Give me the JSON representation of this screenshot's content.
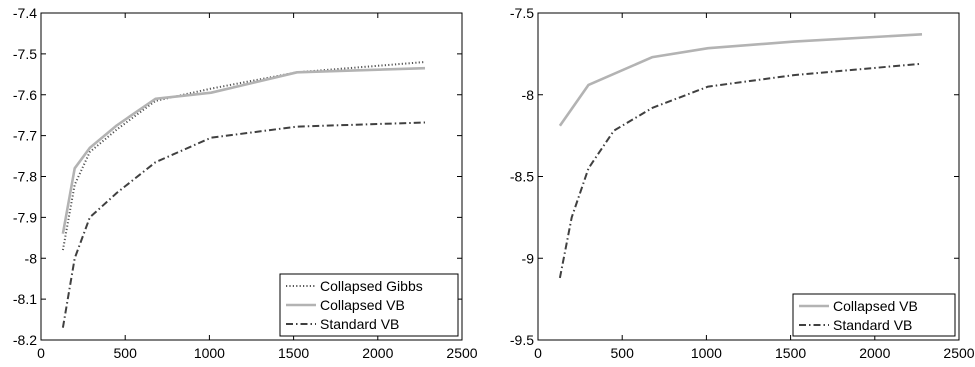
{
  "chart_data": [
    {
      "type": "line",
      "title": "",
      "xlabel": "",
      "ylabel": "",
      "xlim": [
        0,
        2500
      ],
      "ylim": [
        -8.2,
        -7.4
      ],
      "xticks": [
        0,
        500,
        1000,
        1500,
        2000,
        2500
      ],
      "xtick_labels": [
        "0",
        "500",
        "1000",
        "1500",
        "2000",
        "2500"
      ],
      "yticks": [
        -7.4,
        -7.5,
        -7.6,
        -7.7,
        -7.8,
        -7.9,
        -8.0,
        -8.1,
        -8.2
      ],
      "ytick_labels": [
        "-7.4",
        "-7.5",
        "-7.6",
        "-7.7",
        "-7.8",
        "-7.9",
        "-8",
        "-8.1",
        "-8.2"
      ],
      "grid": false,
      "legend_position": "bottom-right",
      "series": [
        {
          "name": "Collapsed Gibbs",
          "style": "dotted",
          "color": "#555555",
          "x": [
            130,
            200,
            290,
            450,
            680,
            1010,
            1520,
            2280
          ],
          "y": [
            -7.98,
            -7.82,
            -7.74,
            -7.685,
            -7.615,
            -7.585,
            -7.545,
            -7.52
          ]
        },
        {
          "name": "Collapsed VB",
          "style": "solid",
          "color": "#b3b3b3",
          "x": [
            130,
            200,
            290,
            450,
            680,
            1010,
            1520,
            2280
          ],
          "y": [
            -7.94,
            -7.78,
            -7.73,
            -7.675,
            -7.61,
            -7.595,
            -7.545,
            -7.535
          ]
        },
        {
          "name": "Standard VB",
          "style": "dashdot",
          "color": "#404040",
          "x": [
            130,
            200,
            290,
            450,
            680,
            1010,
            1520,
            2280
          ],
          "y": [
            -8.17,
            -8.0,
            -7.9,
            -7.84,
            -7.765,
            -7.705,
            -7.678,
            -7.668
          ]
        }
      ]
    },
    {
      "type": "line",
      "title": "",
      "xlabel": "",
      "ylabel": "",
      "xlim": [
        0,
        2500
      ],
      "ylim": [
        -9.5,
        -7.5
      ],
      "xticks": [
        0,
        500,
        1000,
        1500,
        2000,
        2500
      ],
      "xtick_labels": [
        "0",
        "500",
        "1000",
        "1500",
        "2000",
        "2500"
      ],
      "yticks": [
        -7.5,
        -8.0,
        -8.5,
        -9.0,
        -9.5
      ],
      "ytick_labels": [
        "-7.5",
        "-8",
        "-8.5",
        "-9",
        "-9.5"
      ],
      "grid": false,
      "legend_position": "bottom-right",
      "series": [
        {
          "name": "Collapsed VB",
          "style": "solid",
          "color": "#b3b3b3",
          "x": [
            130,
            300,
            680,
            1010,
            1520,
            2280
          ],
          "y": [
            -8.19,
            -7.94,
            -7.77,
            -7.715,
            -7.675,
            -7.63
          ]
        },
        {
          "name": "Standard VB",
          "style": "dashdot",
          "color": "#404040",
          "x": [
            130,
            200,
            300,
            450,
            680,
            1010,
            1520,
            2280
          ],
          "y": [
            -9.12,
            -8.75,
            -8.45,
            -8.22,
            -8.08,
            -7.95,
            -7.88,
            -7.81
          ]
        }
      ]
    }
  ]
}
